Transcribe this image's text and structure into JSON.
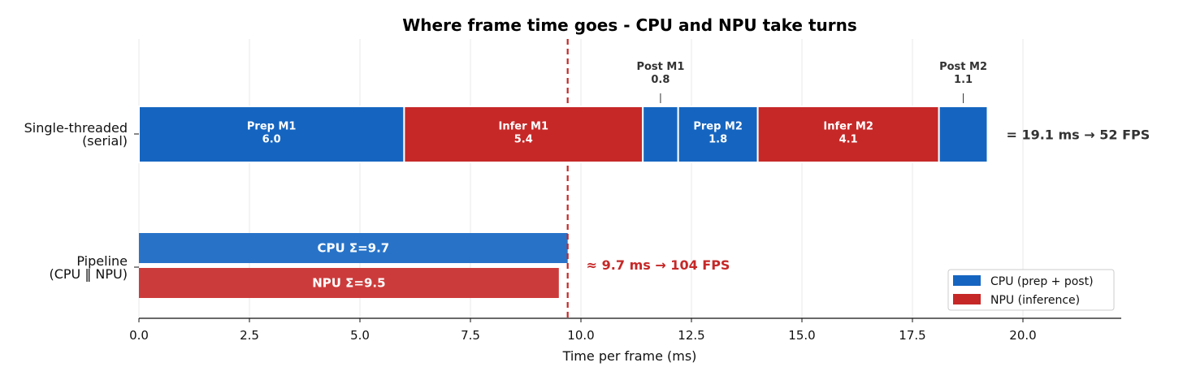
{
  "chart_data": {
    "type": "bar",
    "orientation": "horizontal-stacked",
    "title": "Where frame time goes - CPU and NPU take turns",
    "xlabel": "Time per frame (ms)",
    "xlim": [
      0,
      22.2
    ],
    "x_ticks": [
      "0.0",
      "2.5",
      "5.0",
      "7.5",
      "10.0",
      "12.5",
      "15.0",
      "17.5",
      "20.0"
    ],
    "x_tick_values": [
      0,
      2.5,
      5,
      7.5,
      10,
      12.5,
      15,
      17.5,
      20
    ],
    "grid": "x",
    "rows": [
      {
        "label_line1": "Single-threaded",
        "label_line2": "(serial)"
      },
      {
        "label_line1": "Pipeline",
        "label_line2": "(CPU ‖ NPU)"
      }
    ],
    "serial_segments": [
      {
        "name": "Prep M1",
        "value": 6.0,
        "value_label": "6.0",
        "unit": "CPU",
        "label_inside": true
      },
      {
        "name": "Infer M1",
        "value": 5.4,
        "value_label": "5.4",
        "unit": "NPU",
        "label_inside": true
      },
      {
        "name": "Post M1",
        "value": 0.8,
        "value_label": "0.8",
        "unit": "CPU",
        "label_inside": false
      },
      {
        "name": "Prep M2",
        "value": 1.8,
        "value_label": "1.8",
        "unit": "CPU",
        "label_inside": true
      },
      {
        "name": "Infer M2",
        "value": 4.1,
        "value_label": "4.1",
        "unit": "NPU",
        "label_inside": true
      },
      {
        "name": "Post M2",
        "value": 1.1,
        "value_label": "1.1",
        "unit": "CPU",
        "label_inside": false
      }
    ],
    "serial_total_label": "= 19.1 ms → 52 FPS",
    "pipeline_bars": [
      {
        "name": "CPU",
        "value": 9.7,
        "label": "CPU  Σ=9.7",
        "unit": "CPU"
      },
      {
        "name": "NPU",
        "value": 9.5,
        "label": "NPU  Σ=9.5",
        "unit": "NPU"
      }
    ],
    "pipeline_total_label": "≈ 9.7 ms → 104 FPS",
    "reference_line": {
      "x": 9.7,
      "style": "dashed",
      "color": "#c62828"
    },
    "legend": {
      "placement": "bottom-right",
      "items": [
        {
          "label": "CPU (prep + post)",
          "color": "#1565c0"
        },
        {
          "label": "NPU (inference)",
          "color": "#c62828"
        }
      ]
    },
    "colors": {
      "CPU": "#1565c0",
      "NPU": "#c62828",
      "CPU_pipeline": "#2873c8",
      "NPU_pipeline": "#cc3b3b"
    }
  }
}
